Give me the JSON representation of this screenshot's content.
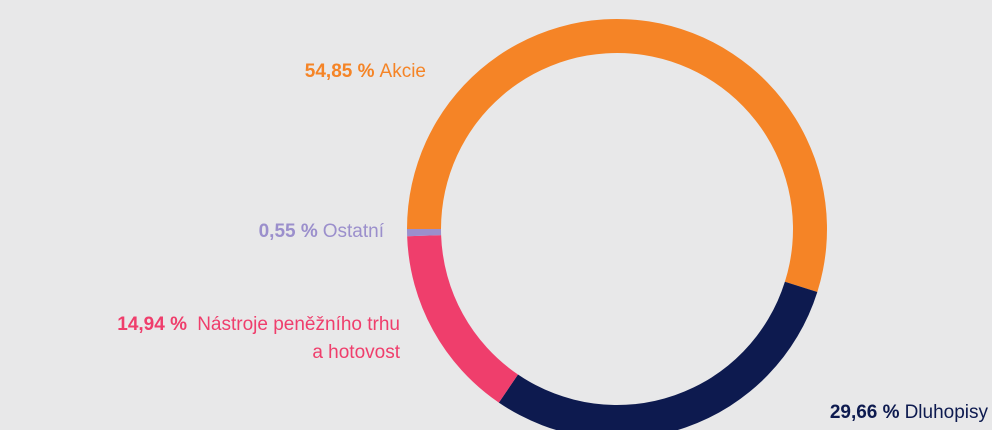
{
  "chart_data": {
    "type": "donut",
    "categories": [
      "Akcie",
      "Dluhopisy",
      "Nástroje peněžního trhu a hotovost",
      "Ostatní"
    ],
    "values": [
      54.85,
      29.66,
      14.94,
      0.55
    ],
    "value_labels": [
      "54,85 %",
      "29,66 %",
      "14,94 %",
      "0,55 %"
    ],
    "colors": [
      "#f58426",
      "#0d1a4f",
      "#ef3e6c",
      "#9b8fcc"
    ]
  }
}
